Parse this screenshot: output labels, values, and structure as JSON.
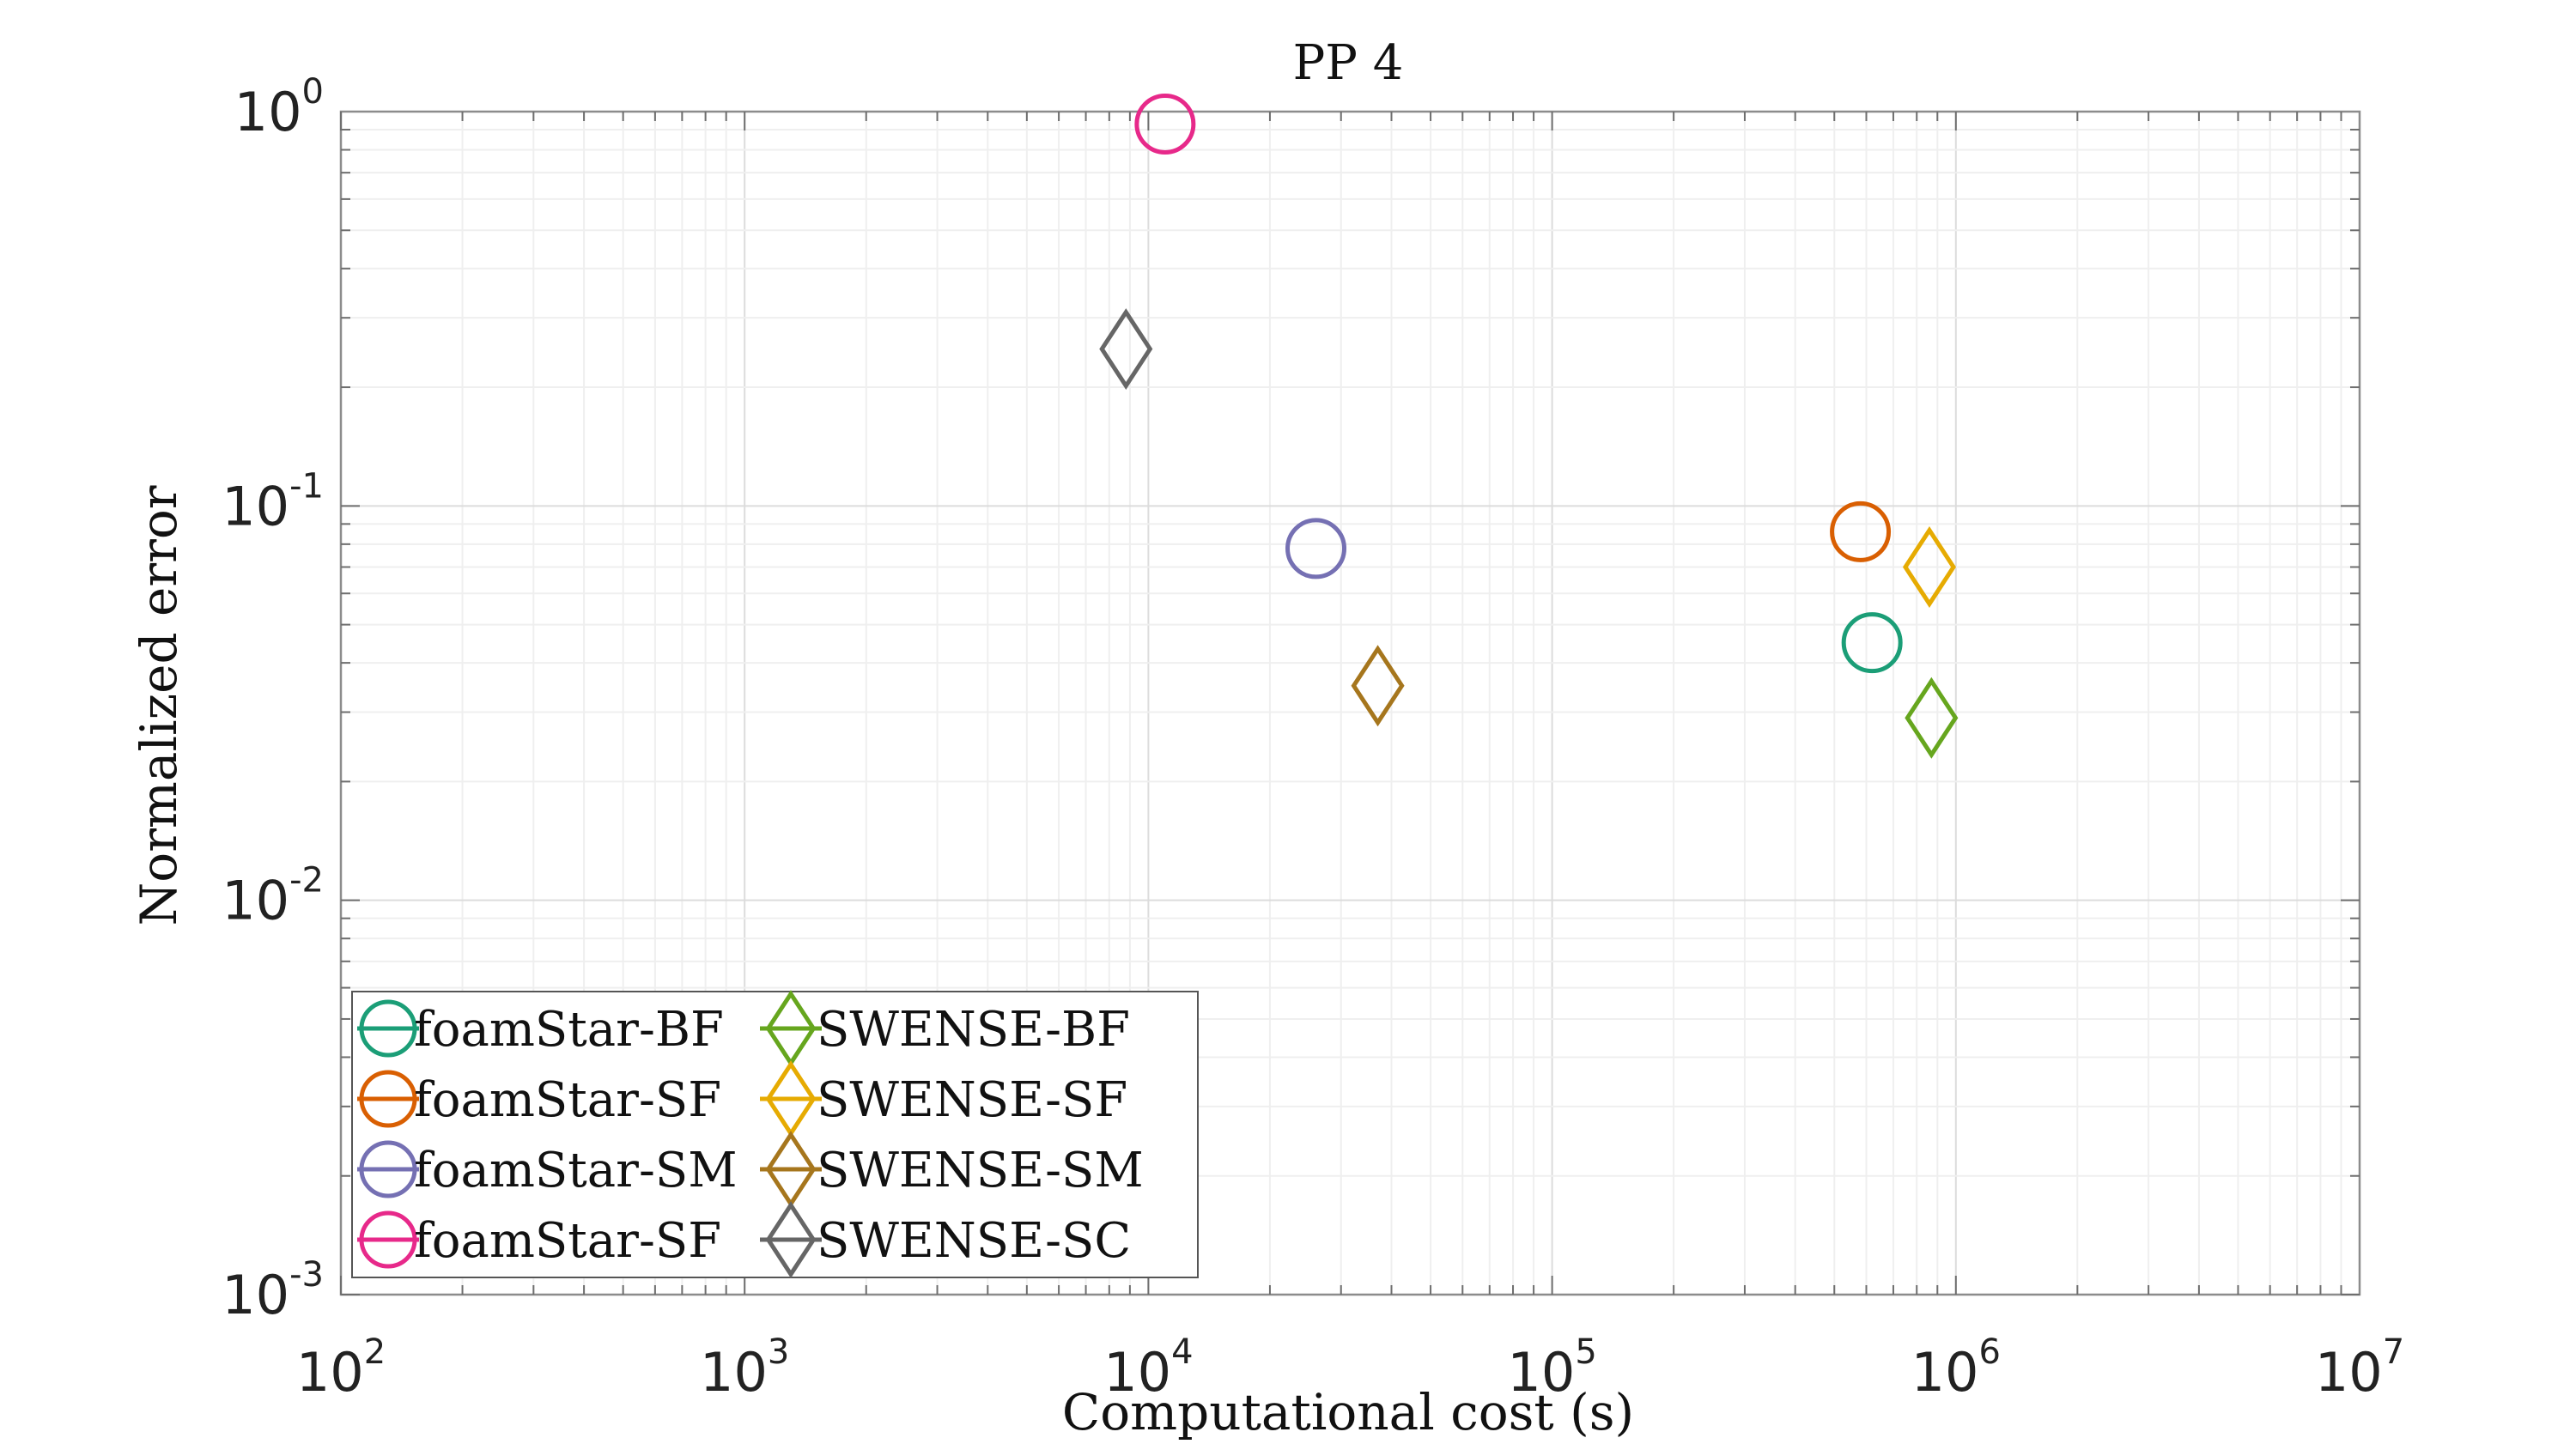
{
  "chart_data": {
    "type": "scatter",
    "title": "PP 4",
    "xlabel": "Computational cost (s)",
    "ylabel": "Normalized error",
    "xscale": "log",
    "yscale": "log",
    "xlim": [
      100,
      10000000
    ],
    "ylim": [
      0.001,
      1
    ],
    "grid": true,
    "legend_placement": "bottom-left",
    "x_ticks": [
      {
        "base": "10",
        "exp": "2"
      },
      {
        "base": "10",
        "exp": "3"
      },
      {
        "base": "10",
        "exp": "4"
      },
      {
        "base": "10",
        "exp": "5"
      },
      {
        "base": "10",
        "exp": "6"
      },
      {
        "base": "10",
        "exp": "7"
      }
    ],
    "y_ticks": [
      {
        "base": "10",
        "exp": "0"
      },
      {
        "base": "10",
        "exp": "-1"
      },
      {
        "base": "10",
        "exp": "-2"
      },
      {
        "base": "10",
        "exp": "-3"
      }
    ],
    "series": [
      {
        "name": "foamStar-BF",
        "marker": "circle",
        "color": "#1b9e77",
        "x": 620000,
        "y": 0.045
      },
      {
        "name": "foamStar-SF",
        "marker": "circle",
        "color": "#d95f02",
        "x": 580000,
        "y": 0.086
      },
      {
        "name": "foamStar-SM",
        "marker": "circle",
        "color": "#7570b3",
        "x": 26000,
        "y": 0.078
      },
      {
        "name": "foamStar-SF",
        "marker": "circle",
        "color": "#e7298a",
        "x": 11000,
        "y": 0.93
      },
      {
        "name": "SWENSE-BF",
        "marker": "diamond",
        "color": "#66a61e",
        "x": 870000,
        "y": 0.029
      },
      {
        "name": "SWENSE-SF",
        "marker": "diamond",
        "color": "#e6ab02",
        "x": 860000,
        "y": 0.07
      },
      {
        "name": "SWENSE-SM",
        "marker": "diamond",
        "color": "#a6761d",
        "x": 37000,
        "y": 0.035
      },
      {
        "name": "SWENSE-SC",
        "marker": "diamond",
        "color": "#666666",
        "x": 8800,
        "y": 0.25
      }
    ]
  }
}
